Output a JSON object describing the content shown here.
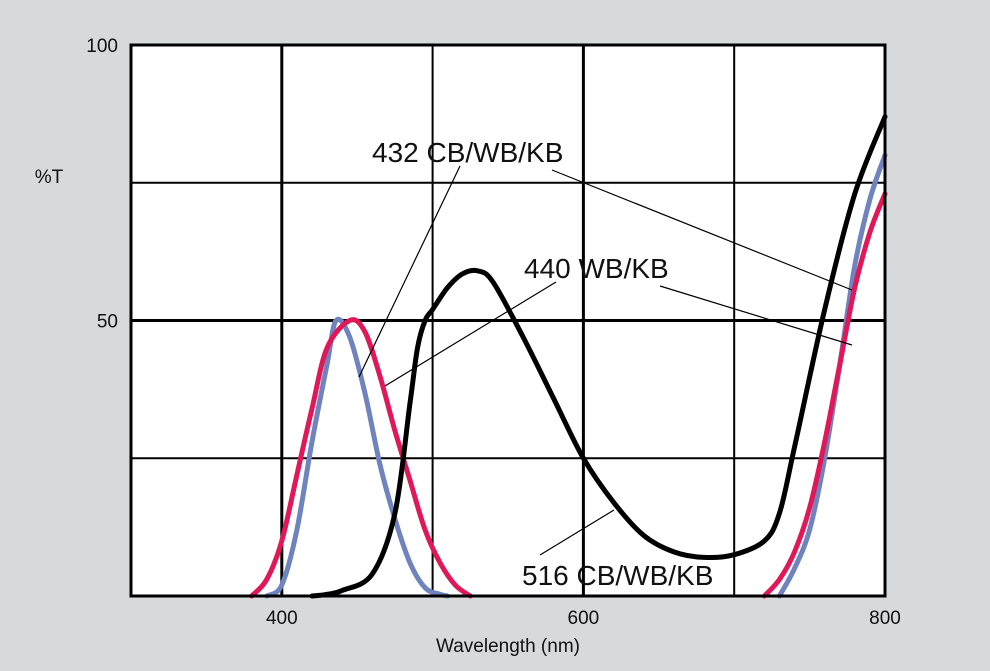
{
  "chart_data": {
    "type": "line",
    "title": "",
    "xlabel": "Wavelength (nm)",
    "ylabel": "%T",
    "xlim": [
      300,
      800
    ],
    "ylim": [
      0,
      100
    ],
    "x_ticks": [
      400,
      600,
      800
    ],
    "x_tick_labels": [
      "400",
      "600",
      "800"
    ],
    "y_ticks": [
      50,
      100
    ],
    "y_tick_labels": [
      "50",
      "100"
    ],
    "grid": true,
    "series": [
      {
        "name": "432 CB/WB/KB",
        "color": "#6f84bf",
        "x": [
          390,
          400,
          410,
          420,
          430,
          436,
          445,
          455,
          465,
          475,
          485,
          495,
          505,
          510,
          730,
          740,
          750,
          760,
          770,
          780,
          790,
          800
        ],
        "y": [
          0,
          2,
          12,
          28,
          42,
          50,
          47,
          37,
          24,
          14,
          6,
          1.5,
          0.3,
          0,
          0,
          5,
          12,
          25,
          42,
          60,
          72,
          80
        ]
      },
      {
        "name": "440 WB/KB",
        "color": "#e0185a",
        "x": [
          380,
          390,
          400,
          410,
          420,
          430,
          445,
          455,
          465,
          475,
          485,
          495,
          505,
          515,
          525,
          720,
          730,
          740,
          750,
          760,
          770,
          780,
          790,
          800
        ],
        "y": [
          0,
          3,
          10,
          22,
          34,
          45,
          50,
          48,
          40,
          30,
          21,
          12,
          6,
          2,
          0,
          0,
          3,
          8,
          16,
          28,
          42,
          56,
          66,
          73
        ]
      },
      {
        "name": "516 CB/WB/KB",
        "color": "#000000",
        "x": [
          420,
          430,
          440,
          460,
          475,
          485,
          490,
          495,
          500,
          510,
          520,
          530,
          540,
          560,
          580,
          600,
          620,
          640,
          660,
          680,
          700,
          720,
          730,
          740,
          760,
          780,
          800
        ],
        "y": [
          0,
          0.3,
          1,
          4,
          15,
          35,
          45,
          50,
          52,
          56,
          58.5,
          59,
          57,
          47,
          36,
          25,
          17,
          11,
          8,
          7,
          7.5,
          10,
          15,
          27,
          52,
          73,
          87
        ]
      }
    ]
  }
}
